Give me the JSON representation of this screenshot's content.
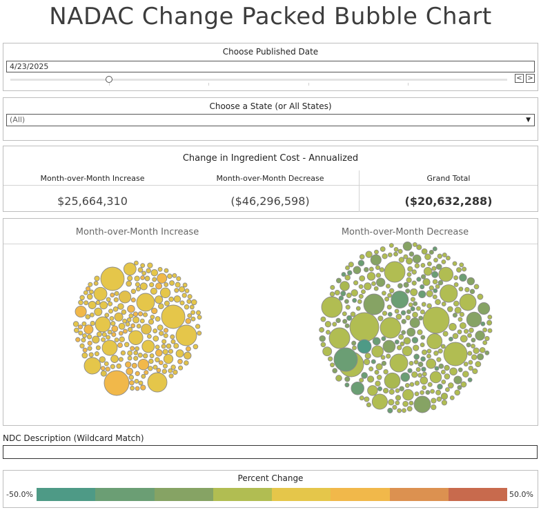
{
  "page": {
    "title": "NADAC Change Packed Bubble Chart"
  },
  "date_filter": {
    "label": "Choose Published Date",
    "value": "4/23/2025",
    "prev_label": "<",
    "next_label": ">"
  },
  "state_filter": {
    "label": "Choose a State (or All States)",
    "value": "(All)"
  },
  "kpi": {
    "title": "Change in Ingredient Cost - Annualized",
    "increase_label": "Month-over-Month Increase",
    "increase_value": "$25,664,310",
    "decrease_label": "Month-over-Month Decrease",
    "decrease_value": "($46,296,598)",
    "total_label": "Grand Total",
    "total_value": "($20,632,288)"
  },
  "chart_data": {
    "type": "packed-bubble",
    "title": "NADAC Change Packed Bubble Chart",
    "panels": [
      {
        "name": "Month-over-Month Increase",
        "bubble_count_estimate": 330,
        "dominant_color": "#e8c44a"
      },
      {
        "name": "Month-over-Month Decrease",
        "bubble_count_estimate": 520,
        "dominant_color": "#a8b94e"
      }
    ],
    "color_scale": {
      "label": "Percent Change",
      "min": -50.0,
      "max": 50.0
    }
  },
  "ndc_filter": {
    "label": "NDC Description (Wildcard Match)",
    "value": ""
  },
  "legend": {
    "title": "Percent Change",
    "min_label": "-50.0%",
    "max_label": "50.0%",
    "colors": [
      "#4e9a86",
      "#6b9e74",
      "#86a364",
      "#b1bd52",
      "#e5c64a",
      "#f1b84a",
      "#dc9150",
      "#c86a4d"
    ]
  }
}
